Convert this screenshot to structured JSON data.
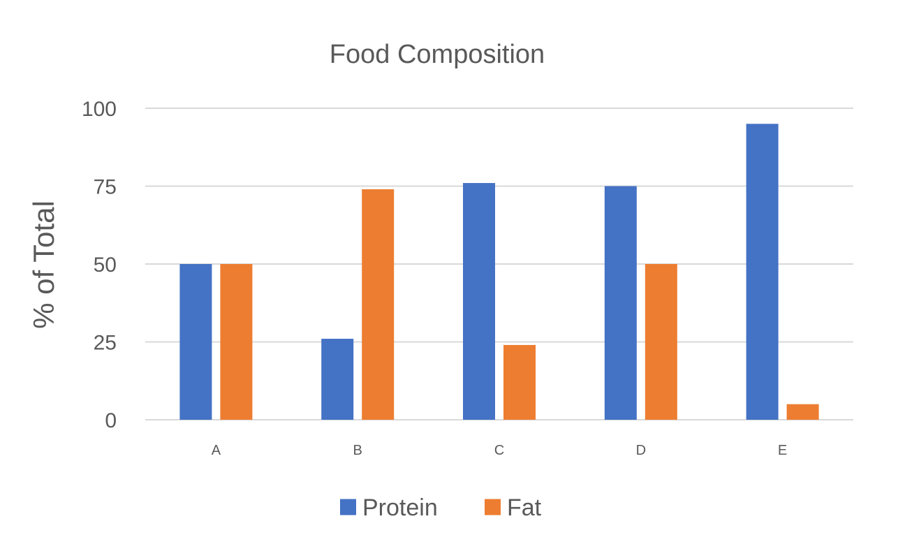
{
  "chart_data": {
    "type": "bar",
    "title": "Food Composition",
    "xlabel": "",
    "ylabel": "% of Total",
    "categories": [
      "A",
      "B",
      "C",
      "D",
      "E"
    ],
    "series": [
      {
        "name": "Protein",
        "values": [
          50,
          26,
          76,
          75,
          95
        ],
        "color": "#4472C4"
      },
      {
        "name": "Fat",
        "values": [
          50,
          74,
          24,
          50,
          5
        ],
        "color": "#ED7D31"
      }
    ],
    "ylim": [
      0,
      100
    ],
    "yticks": [
      0,
      25,
      50,
      75,
      100
    ],
    "grid": true,
    "legend_position": "bottom"
  }
}
